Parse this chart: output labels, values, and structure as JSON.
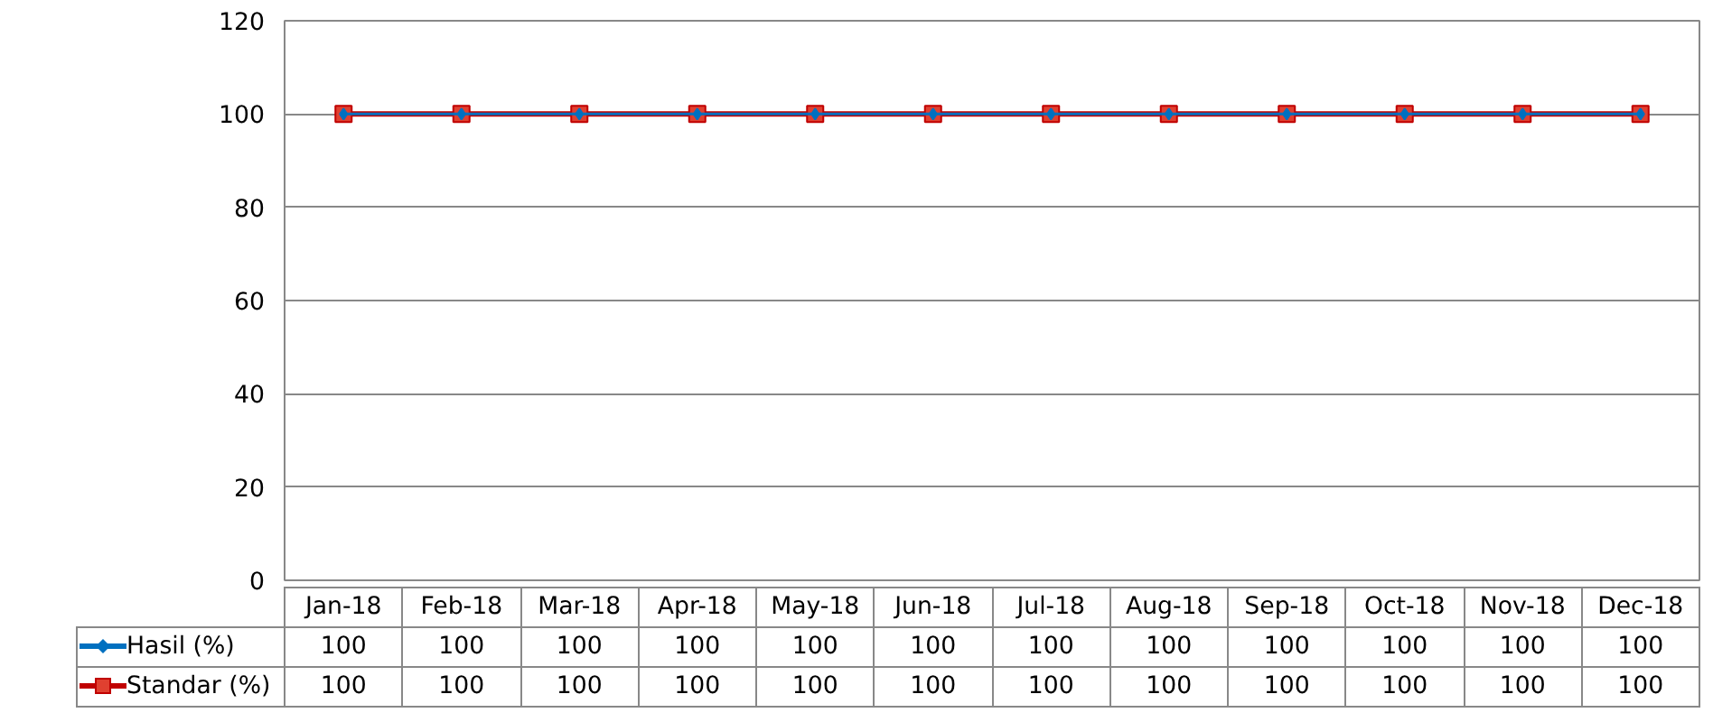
{
  "chart_data": {
    "type": "line",
    "categories": [
      "Jan-18",
      "Feb-18",
      "Mar-18",
      "Apr-18",
      "May-18",
      "Jun-18",
      "Jul-18",
      "Aug-18",
      "Sep-18",
      "Oct-18",
      "Nov-18",
      "Dec-18"
    ],
    "series": [
      {
        "name": "Hasil (%)",
        "color": "#0070c0",
        "marker": "diamond",
        "values": [
          100,
          100,
          100,
          100,
          100,
          100,
          100,
          100,
          100,
          100,
          100,
          100
        ]
      },
      {
        "name": "Standar (%)",
        "color": "#c00000",
        "marker": "square",
        "values": [
          100,
          100,
          100,
          100,
          100,
          100,
          100,
          100,
          100,
          100,
          100,
          100
        ]
      }
    ],
    "ylim": [
      0,
      120
    ],
    "yticks": [
      0,
      20,
      40,
      60,
      80,
      100,
      120
    ],
    "grid": "y",
    "legend": "bottom",
    "data_labels": true,
    "line_style": "solid"
  }
}
